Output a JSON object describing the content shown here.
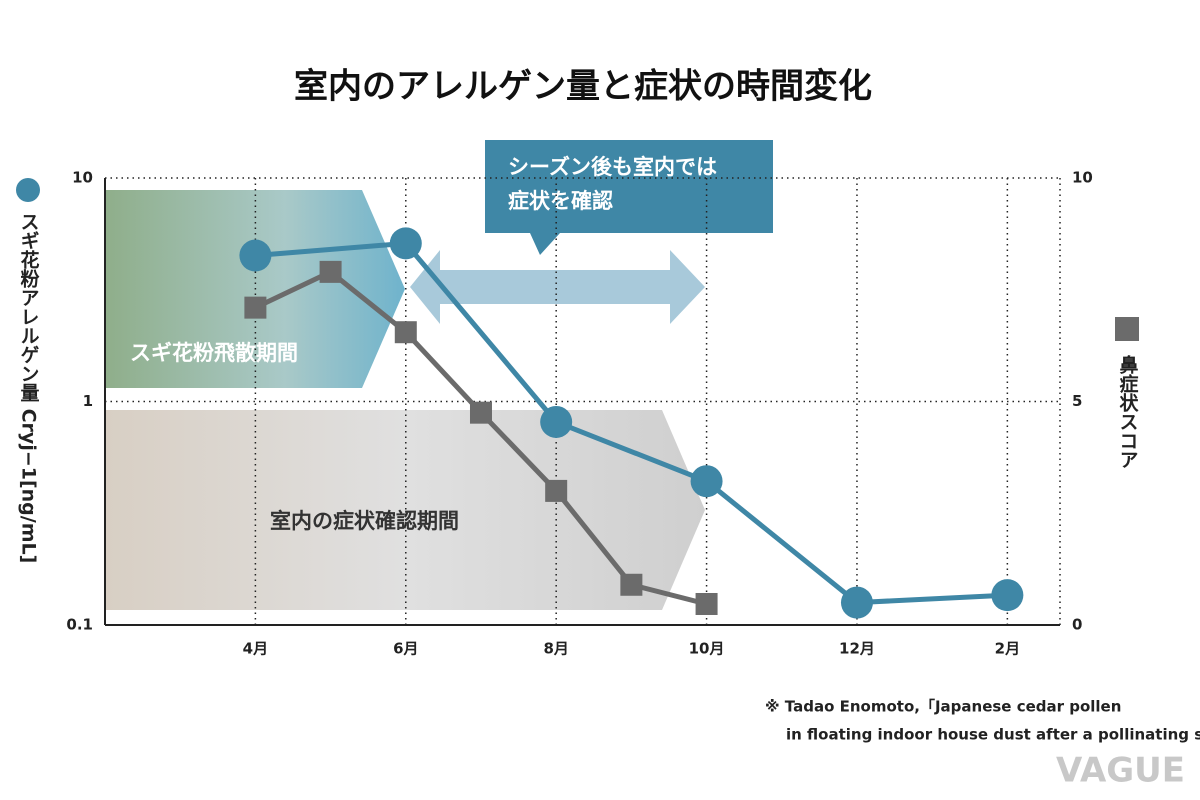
{
  "chart_data": {
    "type": "line",
    "title": "室内のアレルゲン量と症状の時間変化",
    "x": [
      4,
      5,
      6,
      7,
      8,
      9,
      10,
      12,
      14
    ],
    "xlim": [
      2,
      14.7
    ],
    "xticks": [
      {
        "value": 4,
        "label": "4月"
      },
      {
        "value": 6,
        "label": "6月"
      },
      {
        "value": 8,
        "label": "8月"
      },
      {
        "value": 10,
        "label": "10月"
      },
      {
        "value": 12,
        "label": "12月"
      },
      {
        "value": 14,
        "label": "2月"
      }
    ],
    "ylim": [
      0.1,
      10
    ],
    "yticks": [
      0.1,
      1,
      10
    ],
    "ylog": true,
    "y2lim": [
      0,
      10
    ],
    "y2ticks": [
      0,
      5,
      10
    ],
    "grid": true,
    "series": [
      {
        "name": "スギ花粉アレルゲン量 Cryj−1[ng/mL]",
        "color": "#3f87a6",
        "marker": "circle",
        "x": [
          4,
          6,
          8,
          10,
          12,
          14
        ],
        "values": [
          4.5,
          5.1,
          0.81,
          0.44,
          0.126,
          0.136
        ]
      },
      {
        "name": "鼻症状スコア",
        "color": "#6b6b6b",
        "marker": "square",
        "axis": "y2",
        "x": [
          4,
          5,
          6,
          7,
          8,
          9,
          10
        ],
        "values": [
          7.1,
          7.9,
          6.55,
          4.75,
          3.0,
          0.9,
          0.47
        ]
      }
    ],
    "annotations": [
      "スギ花粉飛散期間",
      "室内の症状確認期間",
      "シーズン後も室内では",
      "症状を確認"
    ],
    "source": [
      "※ Tadao Enomoto,「Japanese cedar pollen",
      "in floating indoor house dust after a pollinating seas"
    ],
    "logo": "VAGUE"
  }
}
